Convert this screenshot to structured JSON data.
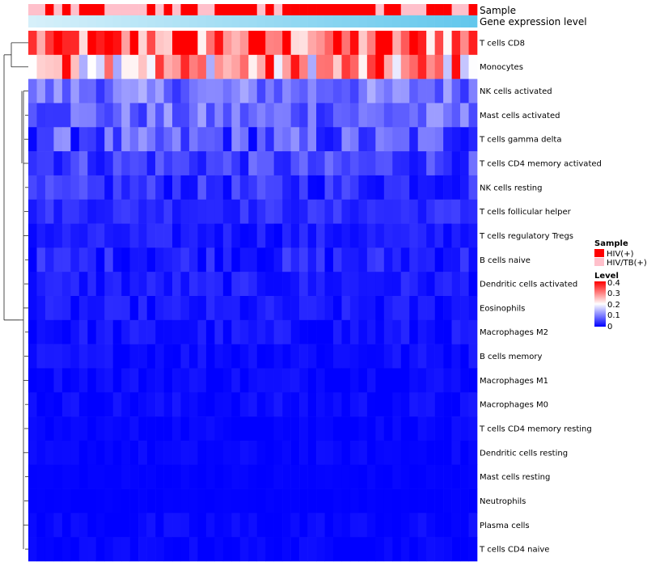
{
  "chart_data": {
    "type": "heatmap",
    "annotation_tracks": [
      "Sample",
      "Gene expression level"
    ],
    "rows": [
      "T cells CD8",
      "Monocytes",
      "NK cells activated",
      "Mast cells activated",
      "T cells gamma delta",
      "T cells CD4 memory activated",
      "NK cells resting",
      "T cells follicular helper",
      "T cells regulatory  Tregs",
      "B cells naive",
      "Dendritic cells activated",
      "Eosinophils",
      "Macrophages M2",
      "B cells memory",
      "Macrophages M1",
      "Macrophages M0",
      "T cells CD4 memory resting",
      "Dendritic cells resting",
      "Mast cells resting",
      "Neutrophils",
      "Plasma cells",
      "T cells CD4 naive"
    ],
    "samples": [
      "P",
      "P",
      "R",
      "P",
      "R",
      "P",
      "R",
      "R",
      "R",
      "P",
      "P",
      "P",
      "P",
      "P",
      "R",
      "P",
      "R",
      "P",
      "R",
      "R",
      "P",
      "P",
      "R",
      "R",
      "R",
      "R",
      "R",
      "P",
      "R",
      "P",
      "R",
      "R",
      "R",
      "R",
      "R",
      "R",
      "R",
      "R",
      "R",
      "R",
      "R",
      "P",
      "R",
      "R",
      "P",
      "P",
      "P",
      "R",
      "R",
      "R",
      "P",
      "P",
      "R"
    ],
    "sample_legend": {
      "title": "Sample",
      "items": [
        {
          "key": "R",
          "label": "HIV(+)",
          "color": "#ff0000"
        },
        {
          "key": "P",
          "label": "HIV/TB(+)",
          "color": "#ffc0cb"
        }
      ]
    },
    "level_legend": {
      "title": "Level",
      "ticks": [
        "0.4",
        "0.3",
        "0.2",
        "0.1",
        "0"
      ],
      "range": [
        0,
        0.4
      ],
      "colors": [
        "#0000ff",
        "#ffffff",
        "#ff0000"
      ]
    },
    "expression_level_colors": [
      "#d6f0fa",
      "#63c7ec"
    ],
    "row_base_levels": [
      0.32,
      0.27,
      0.09,
      0.08,
      0.06,
      0.05,
      0.035,
      0.035,
      0.02,
      0.025,
      0.02,
      0.015,
      0.012,
      0.01,
      0.008,
      0.008,
      0.004,
      0.004,
      0.002,
      0.001,
      0.004,
      0.004
    ],
    "row_variation": [
      0.14,
      0.14,
      0.05,
      0.05,
      0.06,
      0.04,
      0.035,
      0.02,
      0.02,
      0.03,
      0.02,
      0.02,
      0.02,
      0.015,
      0.012,
      0.012,
      0.008,
      0.008,
      0.004,
      0.002,
      0.012,
      0.008
    ],
    "n_columns": 53
  }
}
